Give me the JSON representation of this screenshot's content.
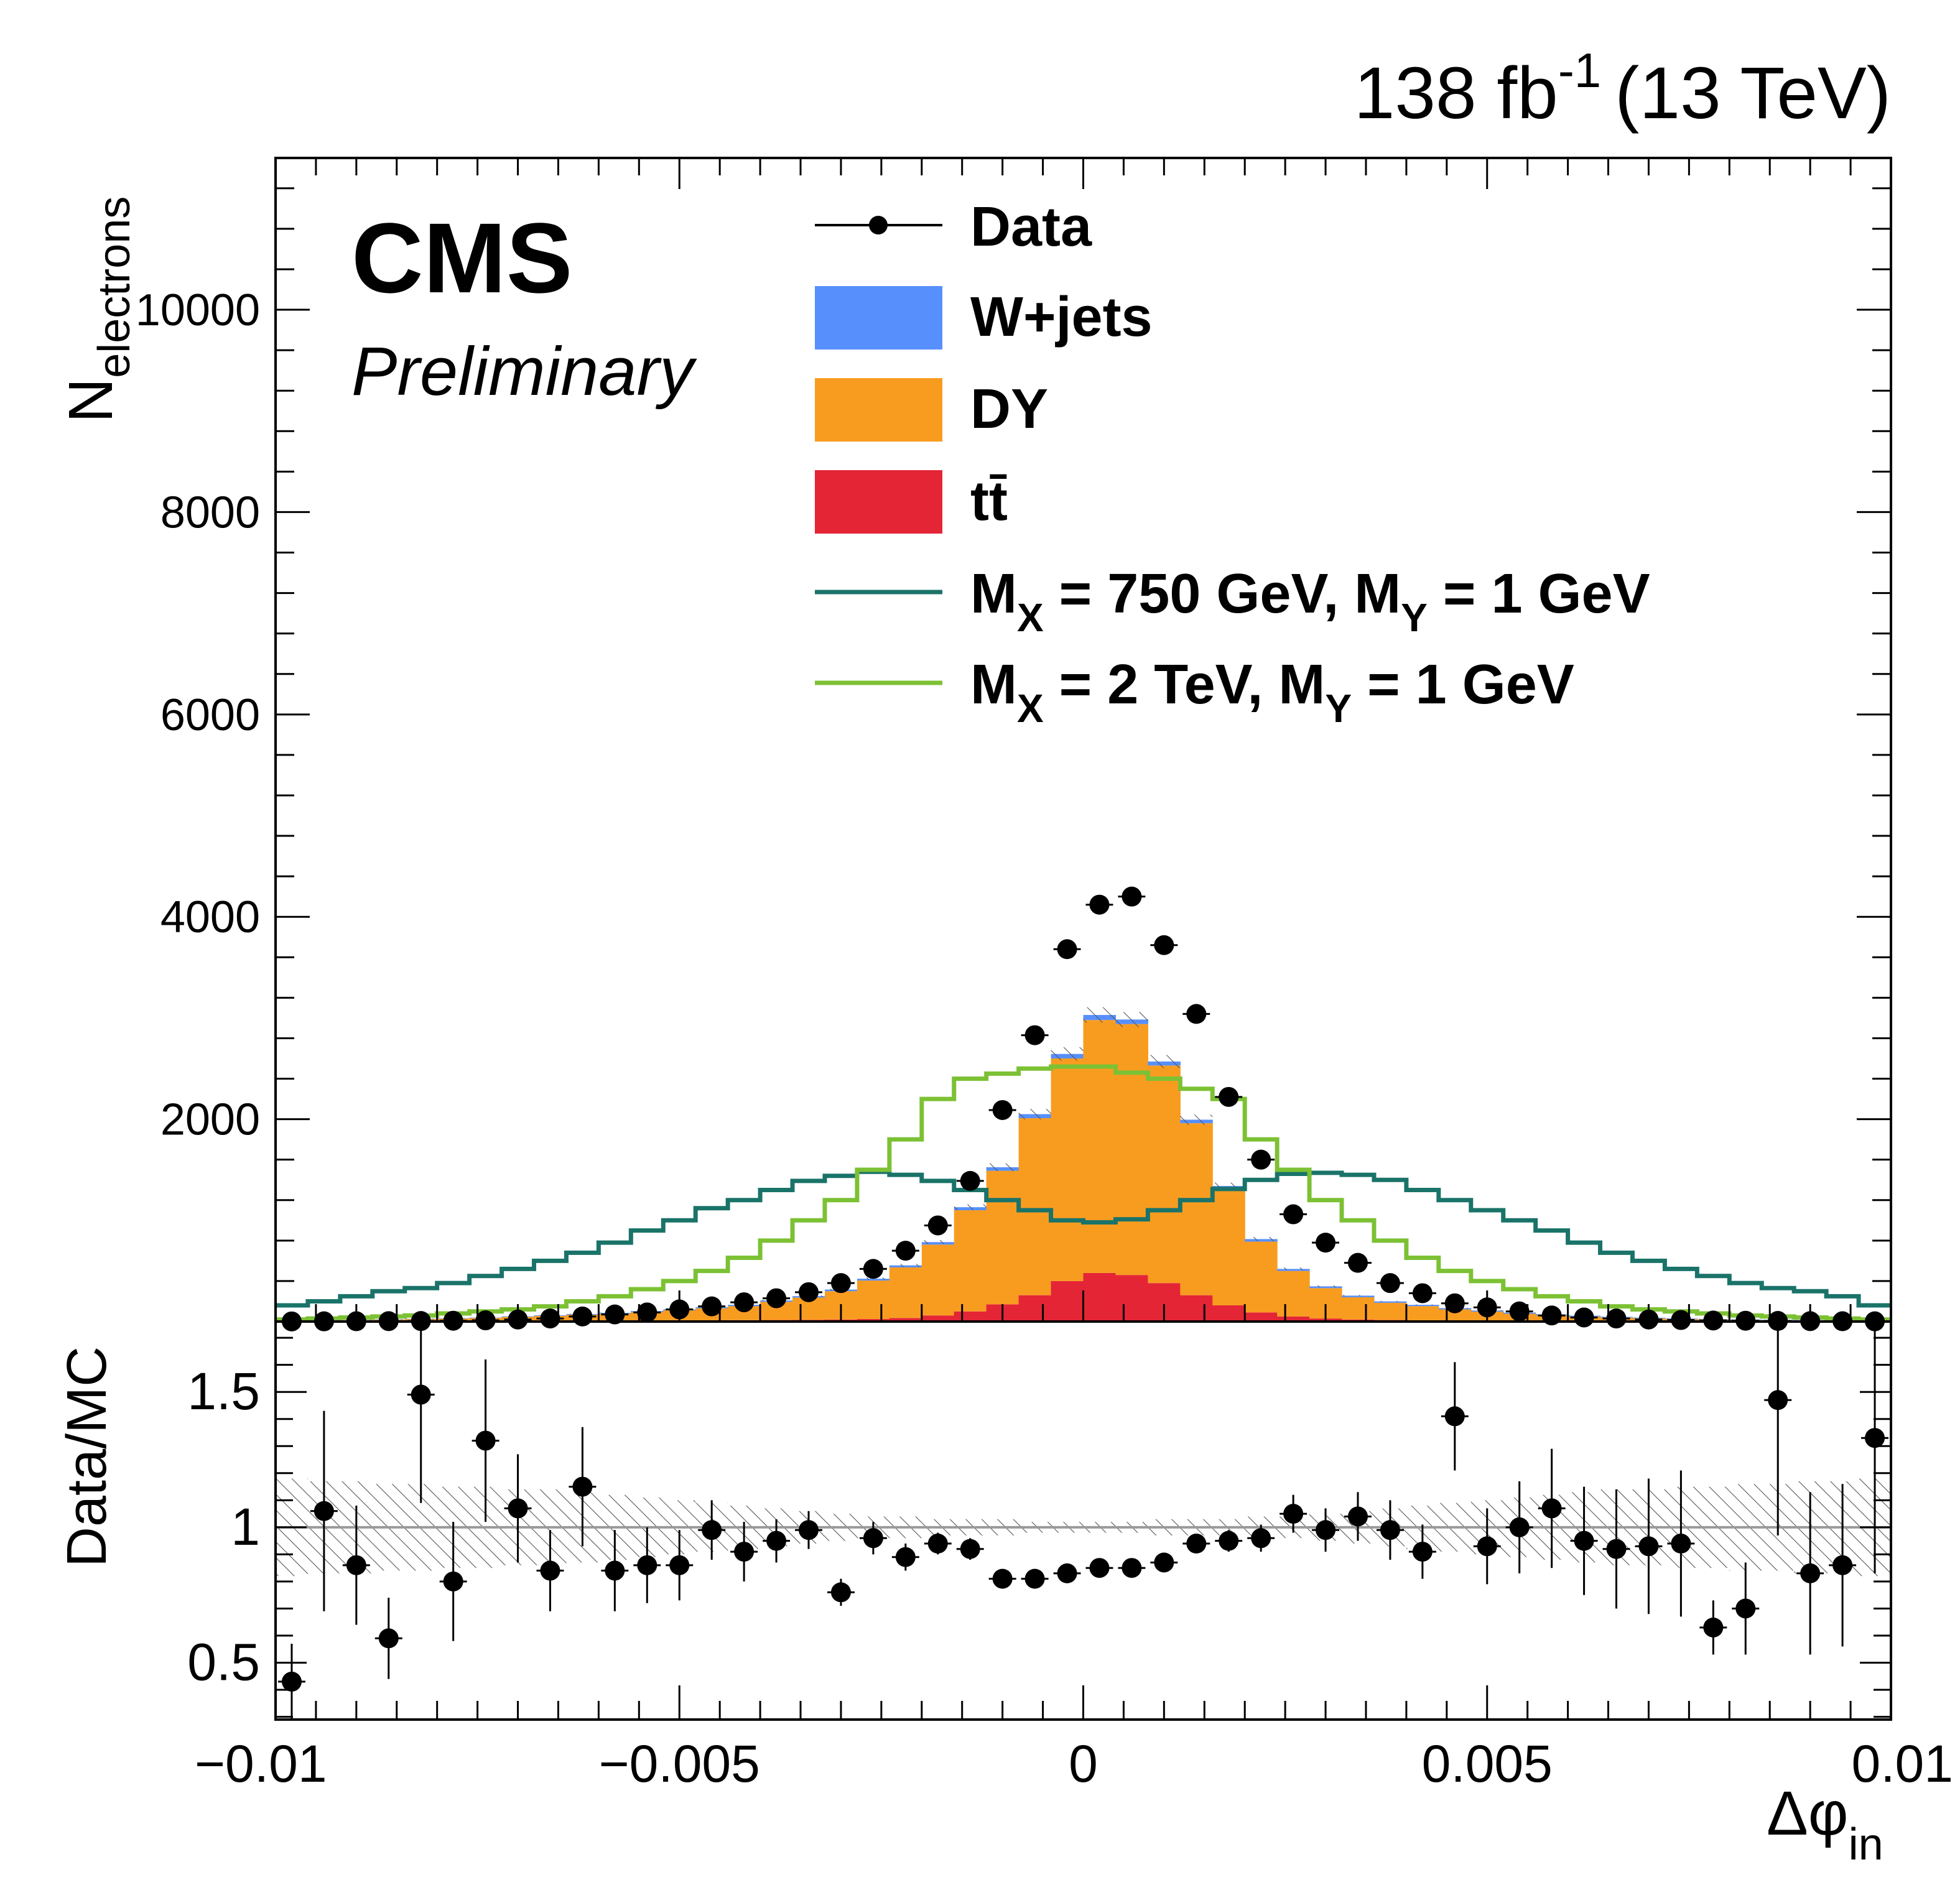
{
  "header": {
    "lumi_main": "138 fb",
    "lumi_sup": "-1",
    "energy": "(13 TeV)"
  },
  "cms": {
    "label": "CMS",
    "sublabel": "Preliminary"
  },
  "legend": {
    "data": "Data",
    "wjets": "W+jets",
    "dy": "DY",
    "ttbar": "tt̄",
    "sig1": {
      "a": "M",
      "a_sub": "X",
      "b": " = 750 GeV, M",
      "b_sub": "Y",
      "c": " = 1 GeV"
    },
    "sig2": {
      "a": "M",
      "a_sub": "X",
      "b": " = 2 TeV, M",
      "b_sub": "Y",
      "c": " = 1 GeV"
    }
  },
  "colors": {
    "wjets": "#5790fc",
    "dy": "#f89c20",
    "ttbar": "#e42536",
    "sig750": "#1a7369",
    "sig2000": "#7cc134",
    "ratio_line": "#999999"
  },
  "chart_data": [
    {
      "type": "bar",
      "stacked": true,
      "ylabel_main": "N",
      "ylabel_sub": "electrons",
      "xlim": [
        -0.01,
        0.01
      ],
      "ylim": [
        0,
        11500
      ],
      "y_ticks": [
        2000,
        4000,
        6000,
        8000,
        10000
      ],
      "bin_edges": [
        -0.01,
        -0.0096,
        -0.0092,
        -0.0088,
        -0.0084,
        -0.008,
        -0.0076,
        -0.0072,
        -0.0068,
        -0.0064,
        -0.006,
        -0.0056,
        -0.0052,
        -0.0048,
        -0.0044,
        -0.004,
        -0.0036,
        -0.0032,
        -0.0028,
        -0.0024,
        -0.002,
        -0.0016,
        -0.0012,
        -0.0008,
        -0.0004,
        0,
        0.0004,
        0.0008,
        0.0012,
        0.0016,
        0.002,
        0.0024,
        0.0028,
        0.0032,
        0.0036,
        0.004,
        0.0044,
        0.0048,
        0.0052,
        0.0056,
        0.006,
        0.0064,
        0.0068,
        0.0072,
        0.0076,
        0.008,
        0.0084,
        0.0088,
        0.0092,
        0.0096,
        0.01
      ],
      "series": [
        {
          "name": "tt̄",
          "values": [
            2,
            2,
            3,
            3,
            4,
            4,
            5,
            6,
            6,
            7,
            8,
            9,
            10,
            11,
            13,
            15,
            17,
            20,
            25,
            35,
            60,
            100,
            170,
            260,
            400,
            480,
            460,
            380,
            260,
            160,
            90,
            50,
            30,
            20,
            15,
            12,
            10,
            8,
            7,
            6,
            5,
            4,
            4,
            3,
            3,
            2,
            2,
            2,
            2,
            2
          ]
        },
        {
          "name": "DY",
          "values": [
            8,
            10,
            12,
            15,
            20,
            25,
            30,
            40,
            50,
            60,
            70,
            85,
            100,
            120,
            140,
            180,
            220,
            280,
            380,
            500,
            700,
            1000,
            1320,
            1750,
            2200,
            2500,
            2480,
            2150,
            1700,
            1150,
            700,
            450,
            300,
            220,
            170,
            140,
            110,
            90,
            70,
            55,
            45,
            35,
            28,
            22,
            18,
            14,
            11,
            9,
            8,
            7
          ]
        },
        {
          "name": "W+jets",
          "values": [
            2,
            2,
            2,
            3,
            3,
            4,
            4,
            5,
            6,
            7,
            8,
            9,
            10,
            11,
            12,
            13,
            14,
            16,
            18,
            20,
            25,
            30,
            35,
            40,
            45,
            50,
            45,
            40,
            35,
            30,
            25,
            20,
            18,
            16,
            14,
            13,
            12,
            11,
            10,
            9,
            8,
            7,
            6,
            5,
            4,
            4,
            3,
            3,
            2,
            2
          ]
        },
        {
          "name": "M_X = 750 GeV, M_Y = 1 GeV",
          "style": "step",
          "values": [
            160,
            200,
            250,
            300,
            330,
            380,
            450,
            520,
            600,
            680,
            780,
            900,
            1000,
            1120,
            1200,
            1300,
            1390,
            1440,
            1480,
            1450,
            1390,
            1300,
            1200,
            1100,
            1000,
            980,
            1010,
            1100,
            1200,
            1310,
            1400,
            1460,
            1470,
            1450,
            1400,
            1300,
            1200,
            1100,
            1000,
            900,
            780,
            680,
            600,
            520,
            450,
            380,
            330,
            300,
            250,
            160
          ]
        },
        {
          "name": "M_X = 2 TeV, M_Y = 1 GeV",
          "style": "step",
          "values": [
            20,
            30,
            40,
            50,
            60,
            80,
            100,
            120,
            150,
            200,
            250,
            320,
            400,
            500,
            630,
            800,
            1000,
            1200,
            1500,
            1800,
            2200,
            2400,
            2450,
            2500,
            2520,
            2520,
            2460,
            2400,
            2300,
            2200,
            1800,
            1500,
            1200,
            1000,
            800,
            630,
            500,
            400,
            320,
            250,
            200,
            150,
            120,
            100,
            80,
            60,
            50,
            40,
            30,
            20
          ]
        },
        {
          "name": "Data",
          "style": "points",
          "values": [
            1,
            2,
            3,
            4,
            5,
            8,
            12,
            20,
            30,
            50,
            70,
            90,
            120,
            150,
            190,
            230,
            290,
            380,
            520,
            700,
            950,
            1390,
            2090,
            2830,
            3680,
            4120,
            4200,
            3720,
            3040,
            2220,
            1600,
            1060,
            780,
            580,
            380,
            280,
            180,
            140,
            100,
            60,
            40,
            30,
            20,
            15,
            10,
            8,
            6,
            4,
            3,
            2
          ]
        }
      ]
    },
    {
      "type": "scatter",
      "ylabel": "Data/MC",
      "xlabel_main": "Δφ",
      "xlabel_sub": "in",
      "xlim": [
        -0.01,
        0.01
      ],
      "ylim": [
        0.29,
        1.76
      ],
      "y_ticks": [
        0.5,
        1,
        1.5
      ],
      "x_ticks": [
        -0.01,
        -0.005,
        0,
        0.005,
        0.01
      ],
      "x_tick_labels": [
        "−0.01",
        "−0.005",
        "0",
        "0.005",
        "0.01"
      ],
      "ref_line": 1,
      "values": [
        0.43,
        1.06,
        0.86,
        0.59,
        1.49,
        0.8,
        1.32,
        1.07,
        0.84,
        1.15,
        0.84,
        0.86,
        0.86,
        0.99,
        0.91,
        0.95,
        0.99,
        0.76,
        0.96,
        0.89,
        0.94,
        0.92,
        0.81,
        0.81,
        0.83,
        0.85,
        0.85,
        0.87,
        0.94,
        0.95,
        0.96,
        1.05,
        0.99,
        1.04,
        0.99,
        0.91,
        1.41,
        0.93,
        1.0,
        1.07,
        0.95,
        0.92,
        0.93,
        0.94,
        0.63,
        0.7,
        1.47,
        0.83,
        0.86,
        1.33
      ],
      "errors": [
        0.14,
        0.37,
        0.22,
        0.15,
        0.4,
        0.22,
        0.3,
        0.2,
        0.15,
        0.22,
        0.15,
        0.14,
        0.13,
        0.11,
        0.11,
        0.08,
        0.07,
        0.05,
        0.06,
        0.05,
        0.04,
        0.04,
        0.03,
        0.02,
        0.02,
        0.02,
        0.02,
        0.02,
        0.03,
        0.04,
        0.05,
        0.07,
        0.08,
        0.09,
        0.11,
        0.1,
        0.2,
        0.14,
        0.17,
        0.22,
        0.2,
        0.22,
        0.25,
        0.27,
        0.1,
        0.17,
        0.5,
        0.3,
        0.3,
        0.5
      ],
      "mc_unc": [
        0.18,
        0.17,
        0.17,
        0.16,
        0.16,
        0.15,
        0.15,
        0.14,
        0.14,
        0.13,
        0.12,
        0.11,
        0.1,
        0.09,
        0.08,
        0.07,
        0.06,
        0.05,
        0.04,
        0.04,
        0.03,
        0.03,
        0.03,
        0.02,
        0.02,
        0.02,
        0.02,
        0.03,
        0.03,
        0.03,
        0.04,
        0.04,
        0.05,
        0.06,
        0.07,
        0.08,
        0.09,
        0.1,
        0.11,
        0.12,
        0.13,
        0.14,
        0.14,
        0.15,
        0.15,
        0.16,
        0.16,
        0.17,
        0.17,
        0.18
      ]
    }
  ]
}
